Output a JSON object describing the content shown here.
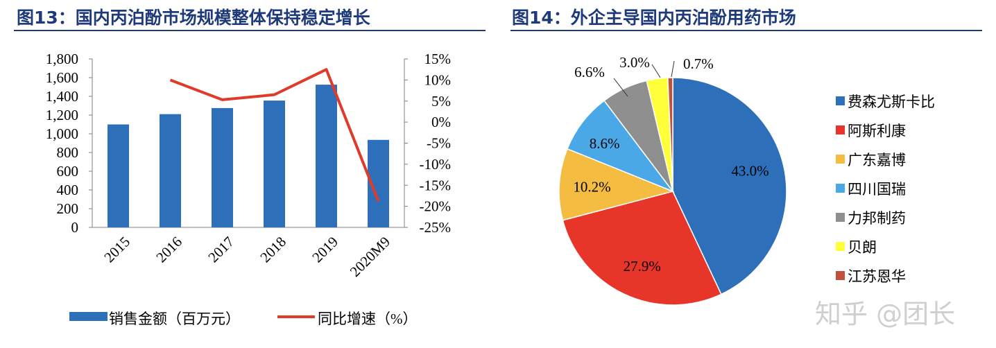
{
  "left_title": "图13：国内丙泊酚市场规模整体保持稳定增长",
  "right_title": "图14：外企主导国内丙泊酚用药市场",
  "watermark": "知乎 @团长",
  "colors": {
    "title": "#1f3a7a",
    "bar": "#2e6fba",
    "line": "#e03a2b"
  },
  "chart_data": [
    {
      "type": "bar",
      "categories": [
        "2015",
        "2016",
        "2017",
        "2018",
        "2019",
        "2020M9"
      ],
      "series": [
        {
          "name": "销售金额（百万元）",
          "type": "bar",
          "axis": "left",
          "values": [
            1100,
            1210,
            1275,
            1355,
            1525,
            935
          ]
        },
        {
          "name": "同比增速（%）",
          "type": "line",
          "axis": "right",
          "values": [
            null,
            10.0,
            5.3,
            6.5,
            12.5,
            -18.8
          ]
        }
      ],
      "ylim_left": [
        0,
        1800
      ],
      "yticks_left": [
        "0",
        "200",
        "400",
        "600",
        "800",
        "1,000",
        "1,200",
        "1,400",
        "1,600",
        "1,800"
      ],
      "ylim_right": [
        -25,
        15
      ],
      "yticks_right": [
        "-25%",
        "-20%",
        "-15%",
        "-10%",
        "-5%",
        "0%",
        "5%",
        "10%",
        "15%"
      ],
      "legend_position": "bottom",
      "grid": false
    },
    {
      "type": "pie",
      "labels": [
        "费森尤斯卡比",
        "阿斯利康",
        "广东嘉博",
        "四川国瑞",
        "力邦制药",
        "贝朗",
        "江苏恩华"
      ],
      "values": [
        43.0,
        27.9,
        10.2,
        8.6,
        6.6,
        3.0,
        0.7
      ],
      "value_labels": [
        "43.0%",
        "27.9%",
        "10.2%",
        "8.6%",
        "6.6%",
        "3.0%",
        "0.7%"
      ],
      "colors": [
        "#2e6fba",
        "#e8352a",
        "#f4bd42",
        "#4aa8e6",
        "#8f8f8f",
        "#ffff3a",
        "#c0503c"
      ],
      "legend_position": "right"
    }
  ]
}
